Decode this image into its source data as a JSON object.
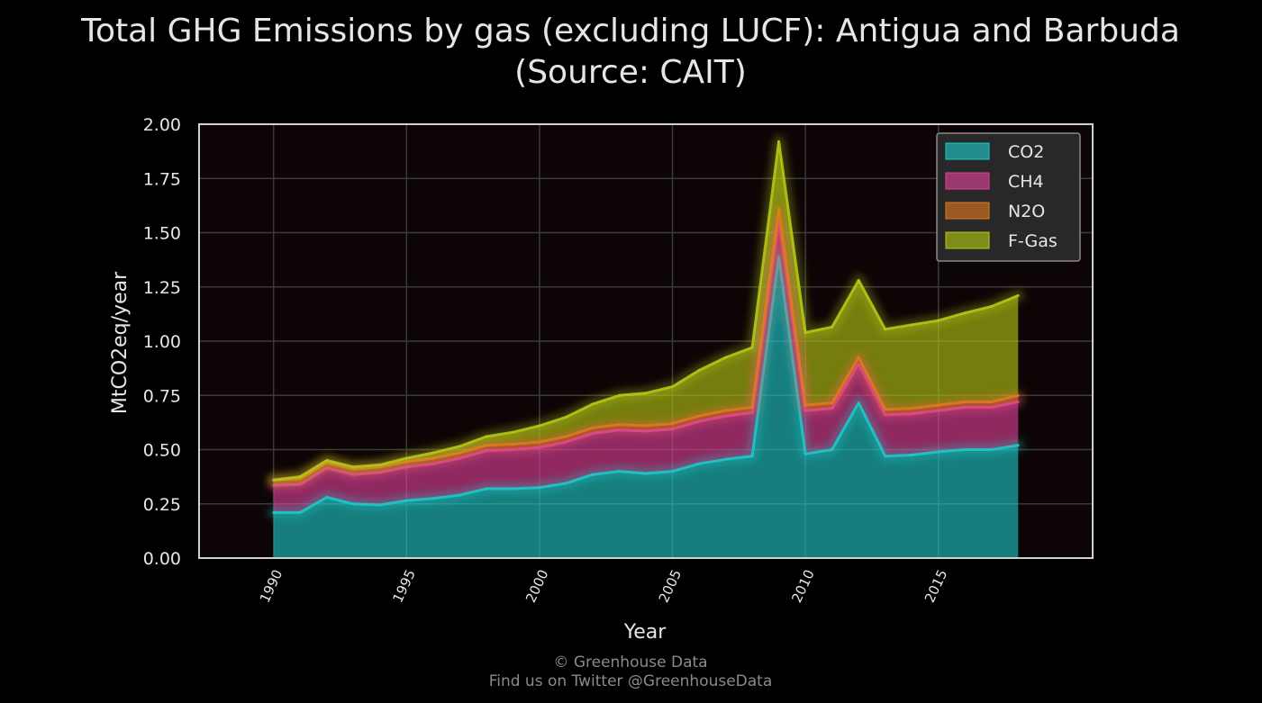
{
  "title_line1": "Total GHG Emissions by gas (excluding LUCF): Antigua and Barbuda",
  "title_line2": "(Source: CAIT)",
  "footer_line1": "© Greenhouse Data",
  "footer_line2": "Find us on Twitter @GreenhouseData",
  "colors": {
    "background": "#000000",
    "plot_background": "#0d0505",
    "grid": "#3a3a3a",
    "frame": "#d0d0d0",
    "text": "#e6e6e6",
    "footer": "#8a8a8a",
    "legend_background": "#2a2a2a",
    "legend_border": "#888888"
  },
  "chart_data": {
    "type": "area",
    "stacked": true,
    "title": "Total GHG Emissions by gas (excluding LUCF): Antigua and Barbuda (Source: CAIT)",
    "xlabel": "Year",
    "ylabel": "MtCO2eq/year",
    "xlim": [
      1987.2,
      2020.8
    ],
    "ylim": [
      0,
      2.0
    ],
    "x_ticks": [
      1990,
      1995,
      2000,
      2005,
      2010,
      2015
    ],
    "y_ticks": [
      0,
      0.25,
      0.5,
      0.75,
      1.0,
      1.25,
      1.5,
      1.75,
      2.0
    ],
    "y_tick_labels": [
      "0.00",
      "0.25",
      "0.50",
      "0.75",
      "1.00",
      "1.25",
      "1.50",
      "1.75",
      "2.00"
    ],
    "grid": true,
    "legend_position": "top-right",
    "x": [
      1990,
      1991,
      1992,
      1993,
      1994,
      1995,
      1996,
      1997,
      1998,
      1999,
      2000,
      2001,
      2002,
      2003,
      2004,
      2005,
      2006,
      2007,
      2008,
      2009,
      2010,
      2011,
      2012,
      2013,
      2014,
      2015,
      2016,
      2017,
      2018
    ],
    "series": [
      {
        "name": "CO2",
        "color": "#1ec8c8",
        "values": [
          0.21,
          0.21,
          0.28,
          0.25,
          0.245,
          0.265,
          0.275,
          0.29,
          0.32,
          0.32,
          0.325,
          0.345,
          0.385,
          0.4,
          0.39,
          0.4,
          0.435,
          0.455,
          0.47,
          1.39,
          0.48,
          0.5,
          0.715,
          0.47,
          0.475,
          0.49,
          0.5,
          0.5,
          0.52
        ]
      },
      {
        "name": "CH4",
        "color": "#e0409a",
        "values": [
          0.125,
          0.13,
          0.135,
          0.135,
          0.15,
          0.155,
          0.16,
          0.17,
          0.175,
          0.18,
          0.185,
          0.19,
          0.19,
          0.19,
          0.195,
          0.195,
          0.195,
          0.2,
          0.2,
          0.16,
          0.2,
          0.19,
          0.18,
          0.19,
          0.19,
          0.19,
          0.195,
          0.195,
          0.2
        ]
      },
      {
        "name": "N2O",
        "color": "#e07820",
        "values": [
          0.025,
          0.025,
          0.025,
          0.025,
          0.025,
          0.025,
          0.025,
          0.025,
          0.025,
          0.025,
          0.025,
          0.025,
          0.025,
          0.025,
          0.025,
          0.025,
          0.025,
          0.025,
          0.025,
          0.06,
          0.025,
          0.025,
          0.03,
          0.025,
          0.025,
          0.025,
          0.025,
          0.025,
          0.03
        ]
      },
      {
        "name": "F-Gas",
        "color": "#b4c814",
        "values": [
          0.0,
          0.01,
          0.01,
          0.01,
          0.01,
          0.015,
          0.025,
          0.03,
          0.04,
          0.055,
          0.075,
          0.09,
          0.11,
          0.135,
          0.15,
          0.17,
          0.21,
          0.245,
          0.275,
          0.31,
          0.335,
          0.35,
          0.355,
          0.37,
          0.385,
          0.39,
          0.41,
          0.44,
          0.46
        ]
      }
    ]
  }
}
